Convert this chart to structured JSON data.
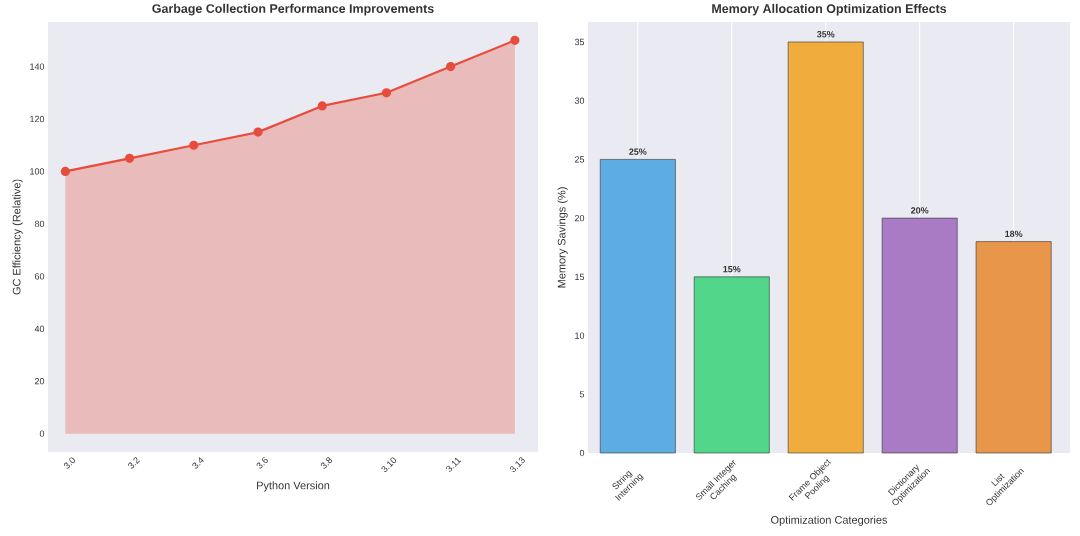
{
  "chart_data": [
    {
      "type": "area",
      "title": "Garbage Collection Performance Improvements",
      "xlabel": "Python Version",
      "ylabel": "GC Efficiency (Relative)",
      "categories": [
        "3.0",
        "3.2",
        "3.4",
        "3.6",
        "3.8",
        "3.10",
        "3.11",
        "3.13"
      ],
      "values": [
        100,
        105,
        110,
        115,
        125,
        130,
        140,
        150
      ],
      "color": "#e74c3c",
      "marker": "circle",
      "ylim": [
        -7,
        157
      ],
      "yticks": [
        0,
        20,
        40,
        60,
        80,
        100,
        120,
        140
      ]
    },
    {
      "type": "bar",
      "title": "Memory Allocation Optimization Effects",
      "xlabel": "Optimization Categories",
      "ylabel": "Memory Savings (%)",
      "categories": [
        "String Interning",
        "Small Integer Caching",
        "Frame Object Pooling",
        "Dictionary Optimization",
        "List Optimization"
      ],
      "values": [
        25,
        15,
        35,
        20,
        18
      ],
      "colors": [
        "#5dade2",
        "#52d68a",
        "#f0ad3e",
        "#a97bc4",
        "#e8964a"
      ],
      "value_labels": [
        "25%",
        "15%",
        "35%",
        "20%",
        "18%"
      ],
      "ylim": [
        0,
        36.7
      ],
      "yticks": [
        0,
        5,
        10,
        15,
        20,
        25,
        30,
        35
      ],
      "grid": "x"
    }
  ]
}
